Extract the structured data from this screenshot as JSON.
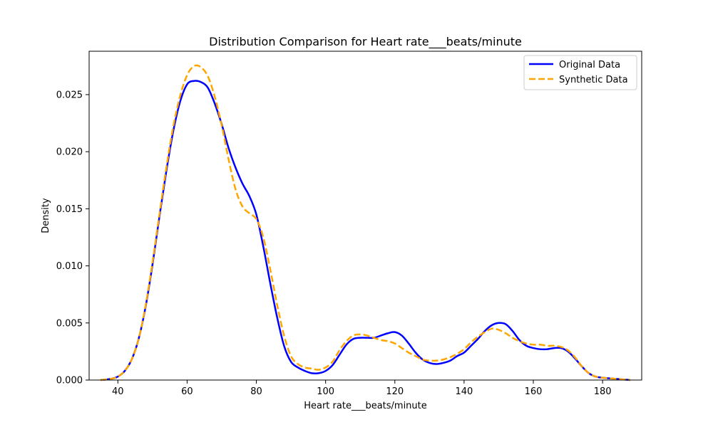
{
  "chart_data": {
    "type": "line",
    "title": "Distribution Comparison for Heart rate___beats/minute",
    "xlabel": "Heart rate___beats/minute",
    "ylabel": "Density",
    "xlim": [
      31.7,
      191.3
    ],
    "ylim": [
      0,
      0.0288
    ],
    "xticks": [
      40,
      60,
      80,
      100,
      120,
      140,
      160,
      180
    ],
    "yticks": [
      0.0,
      0.005,
      0.01,
      0.015,
      0.02,
      0.025
    ],
    "ytick_labels": [
      "0.000",
      "0.005",
      "0.010",
      "0.015",
      "0.020",
      "0.025"
    ],
    "grid": false,
    "legend_position": "top-right",
    "series": [
      {
        "name": "Original Data",
        "color": "#0000ff",
        "style": "solid",
        "points": [
          [
            35,
            0
          ],
          [
            38,
            0.0001
          ],
          [
            40,
            0.0003
          ],
          [
            42,
            0.0008
          ],
          [
            44,
            0.0018
          ],
          [
            46,
            0.0036
          ],
          [
            48,
            0.0064
          ],
          [
            50,
            0.0101
          ],
          [
            52,
            0.0143
          ],
          [
            54,
            0.0183
          ],
          [
            56,
            0.0218
          ],
          [
            58,
            0.0244
          ],
          [
            60,
            0.0259
          ],
          [
            62,
            0.0262
          ],
          [
            64,
            0.0261
          ],
          [
            66,
            0.0256
          ],
          [
            68,
            0.0242
          ],
          [
            70,
            0.0224
          ],
          [
            72,
            0.0203
          ],
          [
            74,
            0.0186
          ],
          [
            76,
            0.0172
          ],
          [
            78,
            0.0161
          ],
          [
            80,
            0.0145
          ],
          [
            82,
            0.0117
          ],
          [
            84,
            0.0085
          ],
          [
            86,
            0.0055
          ],
          [
            88,
            0.003
          ],
          [
            90,
            0.0016
          ],
          [
            92,
            0.0011
          ],
          [
            94,
            0.0008
          ],
          [
            96,
            0.0006
          ],
          [
            98,
            0.0006
          ],
          [
            100,
            0.0008
          ],
          [
            102,
            0.0013
          ],
          [
            104,
            0.0022
          ],
          [
            106,
            0.0031
          ],
          [
            108,
            0.0036
          ],
          [
            110,
            0.0037
          ],
          [
            112,
            0.0037
          ],
          [
            114,
            0.0037
          ],
          [
            116,
            0.0039
          ],
          [
            118,
            0.0041
          ],
          [
            120,
            0.0042
          ],
          [
            122,
            0.0039
          ],
          [
            124,
            0.0032
          ],
          [
            126,
            0.0024
          ],
          [
            128,
            0.0018
          ],
          [
            130,
            0.0015
          ],
          [
            132,
            0.0014
          ],
          [
            134,
            0.0015
          ],
          [
            136,
            0.0017
          ],
          [
            138,
            0.0021
          ],
          [
            140,
            0.0024
          ],
          [
            142,
            0.003
          ],
          [
            144,
            0.0036
          ],
          [
            146,
            0.0043
          ],
          [
            148,
            0.0048
          ],
          [
            150,
            0.005
          ],
          [
            152,
            0.0049
          ],
          [
            154,
            0.0043
          ],
          [
            156,
            0.0035
          ],
          [
            158,
            0.003
          ],
          [
            160,
            0.0028
          ],
          [
            162,
            0.0027
          ],
          [
            164,
            0.0027
          ],
          [
            166,
            0.0028
          ],
          [
            168,
            0.0028
          ],
          [
            170,
            0.0025
          ],
          [
            172,
            0.0019
          ],
          [
            174,
            0.0012
          ],
          [
            176,
            0.0006
          ],
          [
            178,
            0.0003
          ],
          [
            180,
            0.0002
          ],
          [
            184,
            0.0001
          ],
          [
            188,
            0
          ]
        ]
      },
      {
        "name": "Synthetic Data",
        "color": "#ffa500",
        "style": "dashed",
        "points": [
          [
            35,
            0
          ],
          [
            38,
            0.0001
          ],
          [
            40,
            0.0003
          ],
          [
            42,
            0.0008
          ],
          [
            44,
            0.0018
          ],
          [
            46,
            0.0036
          ],
          [
            48,
            0.0065
          ],
          [
            50,
            0.0103
          ],
          [
            52,
            0.0145
          ],
          [
            54,
            0.0186
          ],
          [
            56,
            0.0222
          ],
          [
            58,
            0.0249
          ],
          [
            60,
            0.0267
          ],
          [
            62,
            0.0275
          ],
          [
            64,
            0.0274
          ],
          [
            66,
            0.0266
          ],
          [
            68,
            0.0248
          ],
          [
            70,
            0.0223
          ],
          [
            72,
            0.0193
          ],
          [
            74,
            0.0167
          ],
          [
            76,
            0.0152
          ],
          [
            78,
            0.0146
          ],
          [
            80,
            0.0141
          ],
          [
            82,
            0.0125
          ],
          [
            84,
            0.0097
          ],
          [
            86,
            0.0066
          ],
          [
            88,
            0.0039
          ],
          [
            90,
            0.0021
          ],
          [
            92,
            0.0014
          ],
          [
            94,
            0.0011
          ],
          [
            96,
            0.001
          ],
          [
            98,
            0.0009
          ],
          [
            100,
            0.0011
          ],
          [
            102,
            0.0016
          ],
          [
            104,
            0.0026
          ],
          [
            106,
            0.0034
          ],
          [
            108,
            0.0039
          ],
          [
            110,
            0.004
          ],
          [
            112,
            0.0039
          ],
          [
            114,
            0.0037
          ],
          [
            116,
            0.0035
          ],
          [
            118,
            0.0034
          ],
          [
            120,
            0.0032
          ],
          [
            122,
            0.0028
          ],
          [
            124,
            0.0024
          ],
          [
            126,
            0.0021
          ],
          [
            128,
            0.0018
          ],
          [
            130,
            0.0017
          ],
          [
            132,
            0.0017
          ],
          [
            134,
            0.0018
          ],
          [
            136,
            0.002
          ],
          [
            138,
            0.0023
          ],
          [
            140,
            0.0027
          ],
          [
            142,
            0.0033
          ],
          [
            144,
            0.0038
          ],
          [
            146,
            0.0042
          ],
          [
            148,
            0.0045
          ],
          [
            150,
            0.0044
          ],
          [
            152,
            0.0041
          ],
          [
            154,
            0.0037
          ],
          [
            156,
            0.0034
          ],
          [
            158,
            0.0032
          ],
          [
            160,
            0.0031
          ],
          [
            162,
            0.0031
          ],
          [
            164,
            0.003
          ],
          [
            166,
            0.003
          ],
          [
            168,
            0.0029
          ],
          [
            170,
            0.0026
          ],
          [
            172,
            0.002
          ],
          [
            174,
            0.0012
          ],
          [
            176,
            0.0006
          ],
          [
            178,
            0.0003
          ],
          [
            180,
            0.0002
          ],
          [
            184,
            0.0001
          ],
          [
            188,
            0
          ]
        ]
      }
    ]
  }
}
